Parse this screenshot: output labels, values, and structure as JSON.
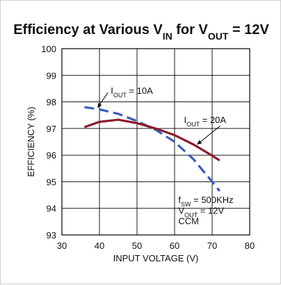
{
  "chart_data": {
    "type": "line",
    "title": {
      "parts": [
        {
          "text": "Efficiency at Various V",
          "sub": false
        },
        {
          "text": "IN",
          "sub": true
        },
        {
          "text": " for  V",
          "sub": false
        },
        {
          "text": "OUT",
          "sub": true
        },
        {
          "text": " = 12V",
          "sub": false
        }
      ]
    },
    "xlabel": "INPUT VOLTAGE  (V)",
    "ylabel": "EFFICIENCY (%)",
    "xlim": [
      30,
      80
    ],
    "ylim": [
      93,
      100
    ],
    "xticks": [
      "30",
      "40",
      "50",
      "60",
      "70",
      "80"
    ],
    "yticks": [
      "93",
      "94",
      "95",
      "96",
      "97",
      "98",
      "99",
      "100"
    ],
    "grid": true,
    "series": [
      {
        "name": "IOUT = 10A",
        "style": "dashed",
        "color": "#3a5bbf",
        "x": [
          36,
          40,
          45,
          50,
          55,
          60,
          65,
          70,
          72
        ],
        "y": [
          97.8,
          97.72,
          97.55,
          97.28,
          96.95,
          96.5,
          95.85,
          95.0,
          94.65
        ]
      },
      {
        "name": "IOUT = 20A",
        "style": "solid",
        "color": "#8b1a2b",
        "x": [
          36,
          40,
          45,
          50,
          55,
          60,
          65,
          70,
          72
        ],
        "y": [
          97.05,
          97.25,
          97.33,
          97.2,
          97.0,
          96.75,
          96.4,
          95.98,
          95.8
        ]
      }
    ],
    "annotations": [
      {
        "id": "label-10a",
        "parts": [
          {
            "text": "I",
            "sub": false
          },
          {
            "text": "OUT",
            "sub": true
          },
          {
            "text": " = 10A",
            "sub": false
          }
        ],
        "at": [
          43,
          98.3
        ],
        "arrow_to": [
          39.5,
          97.78
        ]
      },
      {
        "id": "label-20a",
        "parts": [
          {
            "text": "I",
            "sub": false
          },
          {
            "text": "OUT",
            "sub": true
          },
          {
            "text": " = 20A",
            "sub": false
          }
        ],
        "at": [
          62.5,
          97.2
        ],
        "arrow_to": [
          66,
          96.4
        ]
      },
      {
        "id": "label-fsw",
        "parts": [
          {
            "text": "f",
            "sub": false
          },
          {
            "text": "SW",
            "sub": true
          },
          {
            "text": " = 500KHz",
            "sub": false
          }
        ],
        "at": [
          61,
          94.2
        ]
      },
      {
        "id": "label-vout",
        "parts": [
          {
            "text": "V",
            "sub": false
          },
          {
            "text": "OUT",
            "sub": true
          },
          {
            "text": " = 12V",
            "sub": false
          }
        ],
        "at": [
          61,
          93.8
        ]
      },
      {
        "id": "label-ccm",
        "parts": [
          {
            "text": "CCM",
            "sub": false
          }
        ],
        "at": [
          61,
          93.4
        ]
      }
    ]
  }
}
